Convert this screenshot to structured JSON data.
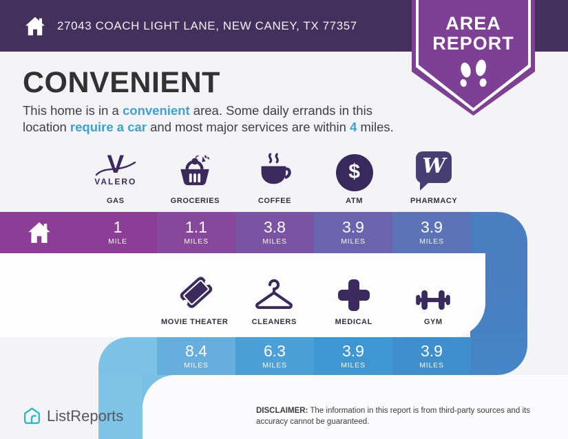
{
  "header": {
    "address": "27043 COACH LIGHT LANE, NEW CANEY, TX 77357",
    "bg_color": "#44305c"
  },
  "badge": {
    "line1": "AREA",
    "line2": "REPORT",
    "color": "#7d4094"
  },
  "intro": {
    "title": "CONVENIENT",
    "accent_color": "#3aa2da",
    "segments": [
      {
        "text": "This home is in a ",
        "accent": false
      },
      {
        "text": "convenient",
        "accent": true
      },
      {
        "text": " area. Some daily errands in this location ",
        "accent": false
      },
      {
        "text": "require a car",
        "accent": true
      },
      {
        "text": " and most major services are within ",
        "accent": false
      },
      {
        "text": "4",
        "accent": true
      },
      {
        "text": " miles.",
        "accent": false
      }
    ]
  },
  "distances": {
    "row1": {
      "home_color": "#8c3e96",
      "tail_color": "#507fc0",
      "items": [
        {
          "icon": "valero-gas-icon",
          "label": "GAS",
          "value": "1",
          "unit": "MILE",
          "color": "#8c3e96"
        },
        {
          "icon": "groceries-basket-icon",
          "label": "GROCERIES",
          "value": "1.1",
          "unit": "MILES",
          "color": "#87479b"
        },
        {
          "icon": "coffee-cup-icon",
          "label": "COFFEE",
          "value": "3.8",
          "unit": "MILES",
          "color": "#7b53a3"
        },
        {
          "icon": "atm-dollar-icon",
          "label": "ATM",
          "value": "3.9",
          "unit": "MILES",
          "color": "#6c63ae"
        },
        {
          "icon": "walgreens-pharmacy-icon",
          "label": "PHARMACY",
          "value": "3.9",
          "unit": "MILES",
          "color": "#5d73b8"
        }
      ]
    },
    "row2": {
      "cap_color": "#7cc2e6",
      "items": [
        {
          "icon": "movie-ticket-icon",
          "label": "MOVIE THEATER",
          "value": "8.4",
          "unit": "MILES",
          "color": "#65aedd"
        },
        {
          "icon": "hanger-cleaners-icon",
          "label": "CLEANERS",
          "value": "6.3",
          "unit": "MILES",
          "color": "#4ba1d7"
        },
        {
          "icon": "medical-cross-icon",
          "label": "MEDICAL",
          "value": "3.9",
          "unit": "MILES",
          "color": "#3e97d3"
        },
        {
          "icon": "gym-dumbbell-icon",
          "label": "GYM",
          "value": "3.9",
          "unit": "MILES",
          "color": "#3f8ecd"
        }
      ]
    }
  },
  "valero_brand": "VALERO",
  "atm_symbol": "$",
  "walgreens_symbol": "W",
  "footer": {
    "brand": "ListReports",
    "brand_color": "#2ab9c8",
    "disclaimer_label": "DISCLAIMER:",
    "disclaimer_text": " The information in this report is from third-party sources and its accuracy cannot be guaranteed."
  }
}
